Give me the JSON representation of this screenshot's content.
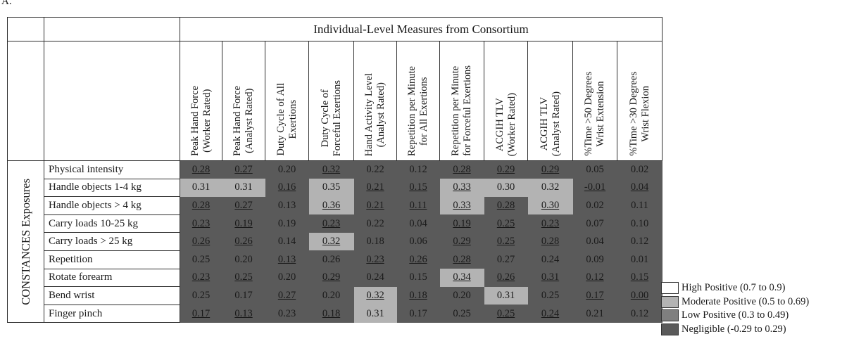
{
  "panel_label": "A.",
  "chart_data": {
    "type": "heatmap",
    "column_group_title": "Individual-Level Measures from Consortium",
    "row_group_title": "CONSTANCES Exposures",
    "columns": [
      "Peak Hand Force\n(Worker Rated)",
      "Peak Hand Force\n(Analyst Rated)",
      "Duty Cycle of All\nExertions",
      "Duty Cycle of\nForceful Exertions",
      "Hand Activity Level\n(Analyst Rated)",
      "Repetition per Minute\nfor All Exertions",
      "Repetition per Minute\nfor Forceful Exertions",
      "ACGIH TLV\n(Worker Rated)",
      "ACGIH TLV\n(Analyst Rated)",
      "%Time >50 Degrees\nWrist Extension",
      "%Time >30 Degrees\nWrist Flexion"
    ],
    "rows": [
      "Physical intensity",
      "Handle objects 1-4 kg",
      "Handle objects >  4 kg",
      "Carry loads 10-25 kg",
      "Carry loads  > 25 kg",
      "Repetition",
      "Rotate forearm",
      "Bend wrist",
      "Finger pinch"
    ],
    "values": [
      [
        "0.28",
        "0.27",
        "0.20",
        "0.32",
        "0.22",
        "0.12",
        "0.28",
        "0.29",
        "0.29",
        "0.05",
        "0.02"
      ],
      [
        "0.31",
        "0.31",
        "0.16",
        "0.35",
        "0.21",
        "0.15",
        "0.33",
        "0.30",
        "0.32",
        "-0.01",
        "0.04"
      ],
      [
        "0.28",
        "0.27",
        "0.13",
        "0.36",
        "0.21",
        "0.11",
        "0.33",
        "0.28",
        "0.30",
        "0.02",
        "0.11"
      ],
      [
        "0.23",
        "0.19",
        "0.19",
        "0.23",
        "0.22",
        "0.04",
        "0.19",
        "0.25",
        "0.23",
        "0.07",
        "0.10"
      ],
      [
        "0.26",
        "0.26",
        "0.14",
        "0.32",
        "0.18",
        "0.06",
        "0.29",
        "0.25",
        "0.28",
        "0.04",
        "0.12"
      ],
      [
        "0.25",
        "0.20",
        "0.13",
        "0.26",
        "0.23",
        "0.26",
        "0.28",
        "0.27",
        "0.24",
        "0.09",
        "0.01"
      ],
      [
        "0.23",
        "0.25",
        "0.20",
        "0.29",
        "0.24",
        "0.15",
        "0.34",
        "0.26",
        "0.31",
        "0.12",
        "0.15"
      ],
      [
        "0.25",
        "0.17",
        "0.27",
        "0.20",
        "0.32",
        "0.18",
        "0.20",
        "0.31",
        "0.25",
        "0.17",
        "0.00"
      ],
      [
        "0.17",
        "0.13",
        "0.23",
        "0.18",
        "0.31",
        "0.17",
        "0.25",
        "0.25",
        "0.24",
        "0.21",
        "0.12"
      ]
    ],
    "underlined": [
      [
        1,
        1,
        0,
        1,
        0,
        0,
        1,
        1,
        1,
        0,
        0
      ],
      [
        0,
        0,
        1,
        0,
        1,
        1,
        1,
        0,
        0,
        1,
        1
      ],
      [
        1,
        1,
        0,
        1,
        1,
        1,
        1,
        1,
        1,
        0,
        0
      ],
      [
        1,
        1,
        0,
        1,
        0,
        0,
        1,
        1,
        1,
        0,
        0
      ],
      [
        1,
        1,
        0,
        1,
        0,
        0,
        1,
        1,
        1,
        0,
        0
      ],
      [
        0,
        0,
        1,
        0,
        1,
        1,
        1,
        0,
        0,
        0,
        0
      ],
      [
        1,
        1,
        0,
        1,
        0,
        0,
        1,
        1,
        1,
        1,
        1
      ],
      [
        0,
        0,
        1,
        0,
        1,
        1,
        0,
        0,
        0,
        1,
        1
      ],
      [
        1,
        1,
        0,
        1,
        0,
        0,
        0,
        1,
        1,
        0,
        0
      ]
    ],
    "category": [
      [
        "N",
        "N",
        "N",
        "N",
        "N",
        "N",
        "N",
        "N",
        "N",
        "N",
        "N"
      ],
      [
        "M",
        "M",
        "N",
        "M",
        "N",
        "N",
        "M",
        "M",
        "M",
        "N",
        "N"
      ],
      [
        "N",
        "N",
        "N",
        "M",
        "N",
        "N",
        "M",
        "N",
        "M",
        "N",
        "N"
      ],
      [
        "N",
        "N",
        "N",
        "N",
        "N",
        "N",
        "N",
        "N",
        "N",
        "N",
        "N"
      ],
      [
        "N",
        "N",
        "N",
        "M",
        "N",
        "N",
        "N",
        "N",
        "N",
        "N",
        "N"
      ],
      [
        "N",
        "N",
        "N",
        "N",
        "N",
        "N",
        "N",
        "N",
        "N",
        "N",
        "N"
      ],
      [
        "N",
        "N",
        "N",
        "N",
        "N",
        "N",
        "M",
        "N",
        "N",
        "N",
        "N"
      ],
      [
        "N",
        "N",
        "N",
        "N",
        "M",
        "N",
        "N",
        "M",
        "N",
        "N",
        "N"
      ],
      [
        "N",
        "N",
        "N",
        "N",
        "M",
        "N",
        "N",
        "N",
        "N",
        "N",
        "N"
      ]
    ],
    "category_colors": {
      "H": "#ffffff",
      "M": "#b3b3b3",
      "L": "#7f7f7f",
      "N": "#5a5a5a"
    },
    "legend": [
      {
        "key": "H",
        "label": "High Positive (0.7 to 0.9)"
      },
      {
        "key": "M",
        "label": "Moderate Positive (0.5 to 0.69)"
      },
      {
        "key": "L",
        "label": "Low Positive (0.3 to 0.49)"
      },
      {
        "key": "N",
        "label": "Negligible (-0.29 to 0.29)"
      }
    ],
    "legend_position": "bottom-right"
  }
}
